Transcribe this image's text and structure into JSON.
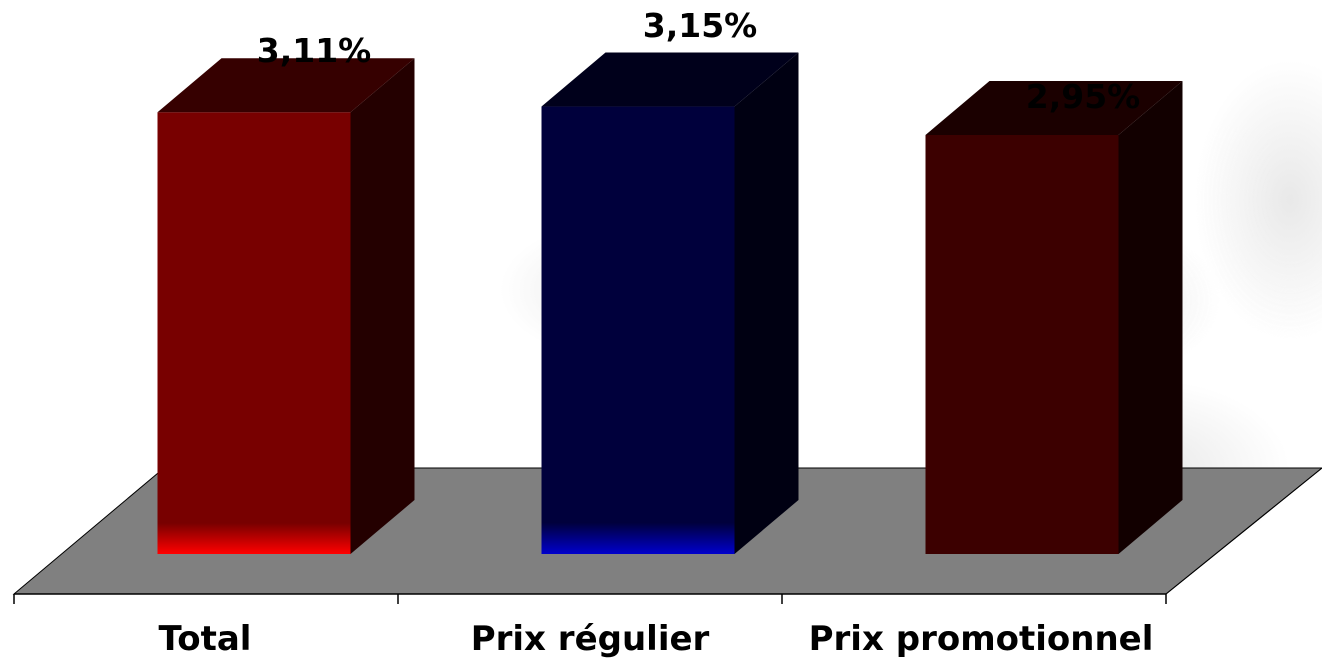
{
  "chart_data": {
    "type": "bar",
    "title": "",
    "xlabel": "",
    "ylabel": "",
    "categories": [
      "Total",
      "Prix régulier",
      "Prix promotionnel"
    ],
    "values": [
      3.11,
      3.15,
      2.95
    ],
    "value_labels": [
      "3,11%",
      "3,15%",
      "2,95%"
    ],
    "bar_colors": [
      "#780000",
      "#00003c",
      "#3c0000"
    ],
    "bar_accent_colors": [
      "#ff0000",
      "#0000cc",
      "#3c0000"
    ],
    "floor_color": "#808080",
    "grid": false,
    "legend": "none"
  }
}
